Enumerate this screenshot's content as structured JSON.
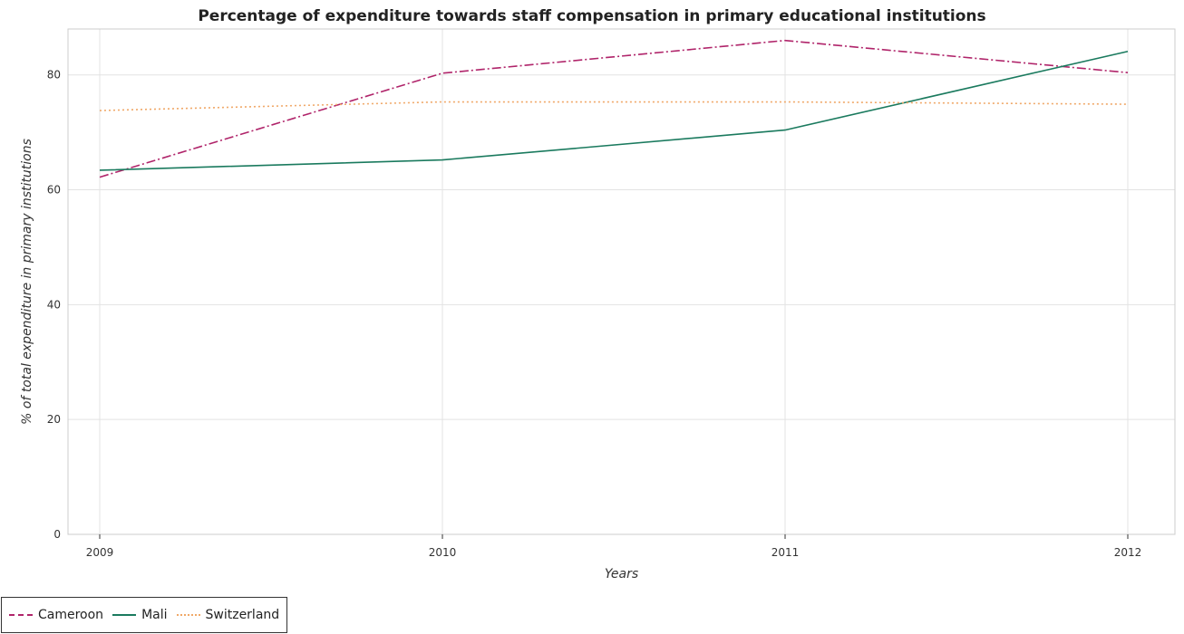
{
  "title": "Percentage of expenditure towards staff compensation in primary educational institutions",
  "chart_data": {
    "type": "line",
    "title": "Percentage of expenditure towards staff compensation in primary educational institutions",
    "xlabel": "Years",
    "ylabel": "% of total expenditure in primary institutions",
    "categories": [
      "2009",
      "2010",
      "2011",
      "2012"
    ],
    "ylim": [
      0,
      88
    ],
    "yticks": [
      0,
      20,
      40,
      60,
      80
    ],
    "grid": true,
    "legend_position": "bottom-left",
    "series": [
      {
        "name": "Cameroon",
        "values": [
          62.2,
          80.3,
          86.0,
          80.4
        ],
        "color": "#b0246a",
        "style": "dash-dot"
      },
      {
        "name": "Mali",
        "values": [
          63.4,
          65.2,
          70.4,
          84.1
        ],
        "color": "#1a7a5e",
        "style": "solid"
      },
      {
        "name": "Switzerland",
        "values": [
          73.8,
          75.3,
          75.3,
          74.9
        ],
        "color": "#f0a868",
        "style": "dotted"
      }
    ]
  }
}
